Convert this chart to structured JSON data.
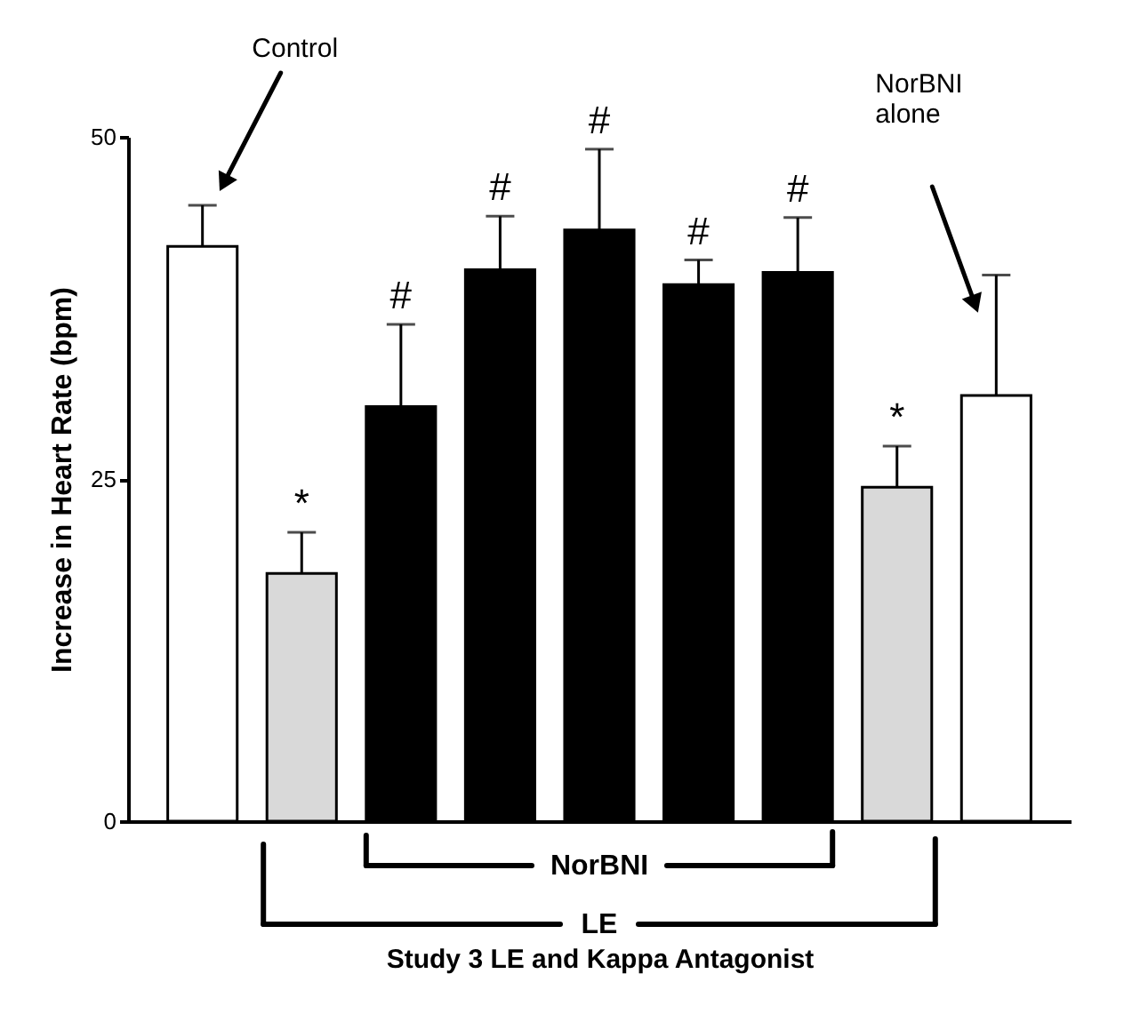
{
  "chart_data": {
    "type": "bar",
    "xlabel": "Study 3 LE and Kappa Antagonist",
    "ylabel": "Increase in Heart Rate (bpm)",
    "categories": [
      null,
      null,
      null,
      null,
      null,
      null,
      null,
      null,
      null
    ],
    "values": [
      42.0,
      18.1,
      30.3,
      40.3,
      43.2,
      39.2,
      40.1,
      24.4,
      31.1
    ],
    "errors": [
      [
        42.0,
        45.0
      ],
      [
        18.1,
        21.1
      ],
      [
        30.3,
        36.3
      ],
      [
        40.3,
        44.2
      ],
      [
        43.2,
        49.1
      ],
      [
        39.2,
        41.0
      ],
      [
        40.1,
        44.1
      ],
      [
        24.4,
        27.4
      ],
      [
        31.1,
        39.9
      ]
    ],
    "colors": [
      "#ffffff",
      "#d9d9d9",
      "#000000",
      "#000000",
      "#000000",
      "#000000",
      "#000000",
      "#d9d9d9",
      "#ffffff"
    ],
    "value_labels": [
      null,
      "*",
      "#",
      "#",
      "#",
      "#",
      "#",
      "*",
      null
    ],
    "annotations": [
      "Control",
      "NorBNI alone",
      "NorBNI",
      "LE"
    ],
    "ylim": [
      0,
      50
    ],
    "yticks": [
      0,
      25,
      50
    ],
    "grid": false
  }
}
